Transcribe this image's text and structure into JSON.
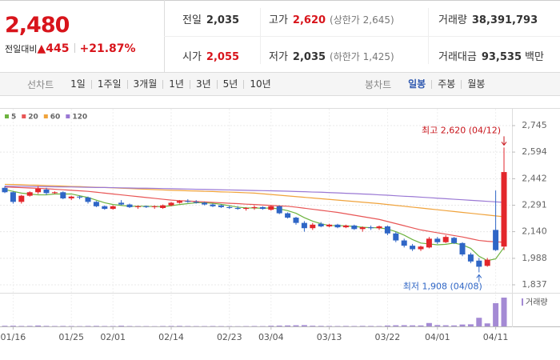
{
  "quote": {
    "price": "2,480",
    "change_label": "전일대비",
    "change_arrow": "▲",
    "change": "445",
    "change_pct": "+21.87%",
    "stats": [
      {
        "label": "전일",
        "value": "2,035"
      },
      {
        "label": "고가",
        "value": "2,620",
        "note": "(상한가 2,645)",
        "color": "#d8141b"
      },
      {
        "label": "거래량",
        "value": "38,391,793"
      },
      {
        "label": "시가",
        "value": "2,055",
        "color": "#d8141b"
      },
      {
        "label": "저가",
        "value": "2,035",
        "note": "(하한가 1,425)"
      },
      {
        "label": "거래대금",
        "value": "93,535",
        "unit": "백만"
      }
    ]
  },
  "tabs": {
    "line_label": "선차트",
    "line_periods": [
      "1일",
      "1주일",
      "3개월",
      "1년",
      "3년",
      "5년",
      "10년"
    ],
    "candle_label": "봉차트",
    "candle_periods": [
      "일봉",
      "주봉",
      "월봉"
    ],
    "active_candle": 0
  },
  "chart_data": {
    "type": "candlestick",
    "categories": [
      null,
      "01/16",
      null,
      null,
      null,
      null,
      null,
      null,
      "01/25",
      null,
      null,
      null,
      null,
      "02/01",
      null,
      null,
      null,
      null,
      null,
      null,
      "02/14",
      null,
      null,
      null,
      null,
      null,
      null,
      "02/23",
      null,
      null,
      null,
      null,
      "03/04",
      null,
      null,
      null,
      null,
      null,
      null,
      "03/13",
      null,
      null,
      null,
      null,
      null,
      null,
      "03/22",
      null,
      null,
      null,
      null,
      null,
      "04/01",
      null,
      null,
      null,
      null,
      null,
      null,
      "04/11",
      null
    ],
    "open": [
      2390,
      2365,
      2310,
      2345,
      2365,
      2380,
      2360,
      2365,
      2330,
      2340,
      2335,
      2310,
      2285,
      2270,
      2305,
      2295,
      2280,
      2285,
      2280,
      2275,
      2290,
      2305,
      2315,
      2310,
      2305,
      2295,
      2290,
      2280,
      2275,
      2270,
      2275,
      2280,
      2265,
      2285,
      2245,
      2220,
      2190,
      2160,
      2185,
      2170,
      2180,
      2165,
      2175,
      2155,
      2165,
      2160,
      2170,
      2130,
      2090,
      2060,
      2040,
      2050,
      2100,
      2080,
      2105,
      2075,
      2010,
      1975,
      1945,
      2150,
      2055
    ],
    "high": [
      2400,
      2370,
      2350,
      2370,
      2400,
      2390,
      2370,
      2370,
      2345,
      2345,
      2340,
      2315,
      2290,
      2290,
      2320,
      2300,
      2290,
      2290,
      2290,
      2295,
      2310,
      2320,
      2325,
      2320,
      2310,
      2300,
      2295,
      2290,
      2285,
      2280,
      2290,
      2285,
      2290,
      2290,
      2250,
      2225,
      2200,
      2190,
      2195,
      2185,
      2185,
      2180,
      2180,
      2170,
      2175,
      2175,
      2175,
      2140,
      2100,
      2070,
      2060,
      2110,
      2110,
      2120,
      2110,
      2080,
      2020,
      1990,
      1990,
      2375,
      2620
    ],
    "low": [
      2360,
      2300,
      2300,
      2340,
      2355,
      2350,
      2355,
      2325,
      2320,
      2325,
      2300,
      2280,
      2265,
      2265,
      2290,
      2275,
      2270,
      2275,
      2270,
      2270,
      2285,
      2300,
      2305,
      2300,
      2290,
      2280,
      2275,
      2270,
      2265,
      2260,
      2265,
      2265,
      2260,
      2240,
      2215,
      2180,
      2140,
      2150,
      2165,
      2165,
      2160,
      2160,
      2150,
      2140,
      2150,
      2150,
      2120,
      2080,
      2050,
      2030,
      2030,
      2045,
      2070,
      2075,
      2070,
      2000,
      1960,
      1908,
      1940,
      2030,
      2035
    ],
    "close": [
      2365,
      2310,
      2345,
      2365,
      2385,
      2360,
      2365,
      2330,
      2340,
      2335,
      2310,
      2285,
      2270,
      2285,
      2295,
      2280,
      2285,
      2280,
      2285,
      2290,
      2305,
      2315,
      2310,
      2305,
      2295,
      2285,
      2280,
      2275,
      2270,
      2275,
      2280,
      2270,
      2285,
      2245,
      2220,
      2190,
      2160,
      2180,
      2170,
      2180,
      2165,
      2175,
      2155,
      2165,
      2160,
      2170,
      2130,
      2090,
      2060,
      2040,
      2055,
      2100,
      2080,
      2110,
      2075,
      2010,
      1970,
      1940,
      1980,
      2035,
      2480
    ],
    "up_color": "#e3262b",
    "down_color": "#2f66c6",
    "moving_averages": [
      {
        "name": "5",
        "color": "#6db33f",
        "values": [
          2380,
          2370,
          2360,
          2355,
          2350,
          2350,
          2355,
          2355,
          2355,
          2345,
          2335,
          2320,
          2305,
          2295,
          2290,
          2285,
          2285,
          2285,
          2283,
          2283,
          2288,
          2295,
          2300,
          2305,
          2305,
          2302,
          2296,
          2288,
          2280,
          2276,
          2275,
          2274,
          2275,
          2270,
          2260,
          2245,
          2220,
          2200,
          2185,
          2175,
          2175,
          2173,
          2170,
          2165,
          2163,
          2162,
          2155,
          2140,
          2120,
          2095,
          2075,
          2070,
          2065,
          2068,
          2075,
          2065,
          2045,
          2000,
          1975,
          1985,
          2050
        ]
      },
      {
        "name": "20",
        "color": "#e85656",
        "values": [
          2395,
          2393,
          2391,
          2389,
          2387,
          2385,
          2382,
          2379,
          2376,
          2373,
          2370,
          2365,
          2360,
          2355,
          2350,
          2345,
          2340,
          2335,
          2330,
          2325,
          2320,
          2317,
          2315,
          2312,
          2310,
          2307,
          2305,
          2302,
          2300,
          2297,
          2295,
          2292,
          2290,
          2287,
          2285,
          2280,
          2274,
          2268,
          2262,
          2256,
          2250,
          2242,
          2234,
          2226,
          2218,
          2210,
          2198,
          2186,
          2174,
          2162,
          2150,
          2142,
          2134,
          2126,
          2118,
          2110,
          2100,
          2090,
          2085,
          2082,
          2080
        ]
      },
      {
        "name": "60",
        "color": "#f0a33c",
        "values": [
          2410,
          2409,
          2408,
          2406,
          2405,
          2403,
          2402,
          2400,
          2398,
          2397,
          2395,
          2393,
          2392,
          2390,
          2388,
          2386,
          2384,
          2382,
          2380,
          2378,
          2376,
          2375,
          2373,
          2372,
          2370,
          2369,
          2367,
          2366,
          2364,
          2362,
          2360,
          2356,
          2352,
          2348,
          2344,
          2340,
          2336,
          2332,
          2328,
          2324,
          2320,
          2316,
          2312,
          2308,
          2304,
          2300,
          2295,
          2290,
          2285,
          2280,
          2275,
          2270,
          2265,
          2260,
          2255,
          2250,
          2245,
          2240,
          2235,
          2230,
          2225
        ]
      },
      {
        "name": "120",
        "color": "#9a78d4",
        "values": [
          2400,
          2399,
          2399,
          2398,
          2397,
          2397,
          2396,
          2395,
          2395,
          2394,
          2393,
          2392,
          2392,
          2391,
          2390,
          2389,
          2388,
          2388,
          2387,
          2386,
          2385,
          2384,
          2383,
          2382,
          2381,
          2380,
          2379,
          2378,
          2377,
          2376,
          2375,
          2374,
          2373,
          2372,
          2371,
          2369,
          2368,
          2366,
          2365,
          2363,
          2361,
          2359,
          2357,
          2355,
          2353,
          2350,
          2348,
          2345,
          2342,
          2340,
          2337,
          2334,
          2331,
          2328,
          2325,
          2322,
          2319,
          2316,
          2313,
          2310,
          2307
        ]
      }
    ],
    "volume": {
      "name": "거래량",
      "color": "#a48ad4",
      "values": [
        800000,
        900000,
        600000,
        700000,
        1200000,
        700000,
        500000,
        600000,
        500000,
        400000,
        600000,
        700000,
        500000,
        500000,
        900000,
        500000,
        400000,
        400000,
        300000,
        500000,
        600000,
        700000,
        500000,
        400000,
        400000,
        500000,
        400000,
        400000,
        300000,
        400000,
        500000,
        400000,
        900000,
        1100000,
        1300000,
        1500000,
        1700000,
        900000,
        700000,
        600000,
        500000,
        600000,
        500000,
        700000,
        600000,
        500000,
        1200000,
        1500000,
        1600000,
        1400000,
        1300000,
        4500000,
        1800000,
        1500000,
        1300000,
        2500000,
        2800000,
        11500000,
        4000000,
        31000000,
        38391793
      ]
    },
    "ylim": [
      1837,
      2745
    ],
    "yticks": [
      {
        "value": 1837,
        "label": "1,837"
      },
      {
        "value": 1988,
        "label": "1,988"
      },
      {
        "value": 2140,
        "label": "2,140"
      },
      {
        "value": 2291,
        "label": "2,291"
      },
      {
        "value": 2442,
        "label": "2,442"
      },
      {
        "value": 2594,
        "label": "2,594"
      },
      {
        "value": 2745,
        "label": "2,745"
      }
    ],
    "grid": true,
    "annotations": [
      {
        "text": "최고 2,620 (04/12)",
        "color": "#c8141b"
      },
      {
        "text": "최저 1,908 (04/08)",
        "color": "#2f66c6"
      }
    ]
  }
}
